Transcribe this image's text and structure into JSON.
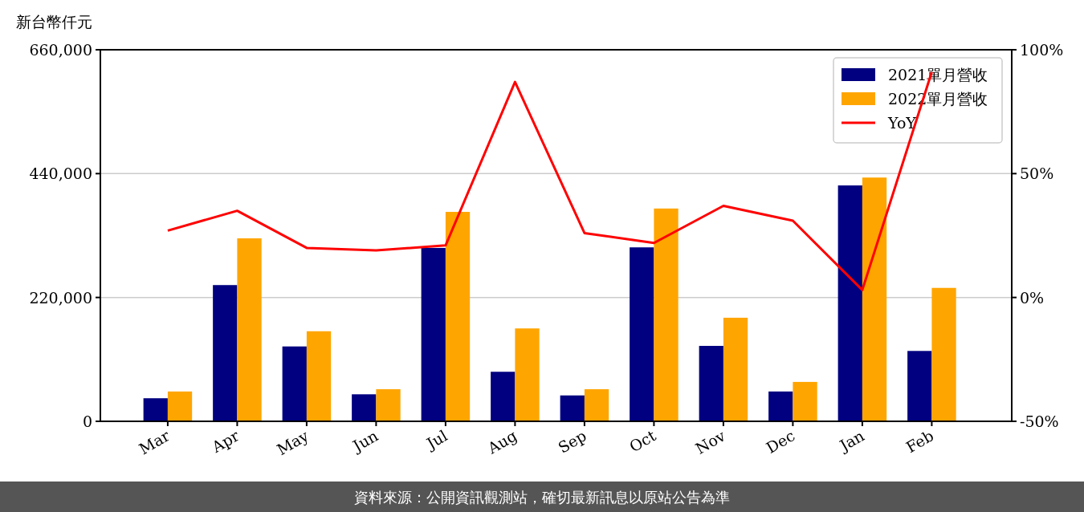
{
  "chart_data": {
    "type": "bar",
    "ylabel": "新台幣仟元",
    "categories": [
      "Mar",
      "Apr",
      "May",
      "Jun",
      "Jul",
      "Aug",
      "Sep",
      "Oct",
      "Nov",
      "Dec",
      "Jan",
      "Feb"
    ],
    "series": [
      {
        "name": "2021單月營收",
        "color": "#000080",
        "values": [
          41000,
          242000,
          133000,
          48000,
          308000,
          88000,
          46000,
          309000,
          134000,
          53000,
          419000,
          125000
        ]
      },
      {
        "name": "2022單月營收",
        "color": "#ffa500",
        "values": [
          53000,
          325000,
          160000,
          57000,
          372000,
          165000,
          57000,
          378000,
          184000,
          70000,
          433000,
          237000
        ]
      },
      {
        "name": "YoY",
        "type": "line",
        "axis": "y2",
        "color": "#ff0000",
        "values": [
          27,
          35,
          20,
          19,
          21,
          87,
          26,
          22,
          37,
          31,
          3,
          91
        ]
      }
    ],
    "ylim": [
      0,
      660000
    ],
    "yticks": [
      {
        "value": 0,
        "label": "0"
      },
      {
        "value": 220000,
        "label": "220,000"
      },
      {
        "value": 440000,
        "label": "440,000"
      },
      {
        "value": 660000,
        "label": "660,000"
      }
    ],
    "y2lim": [
      -50,
      100
    ],
    "y2ticks": [
      {
        "value": -50,
        "label": "-50%"
      },
      {
        "value": 0,
        "label": "0%"
      },
      {
        "value": 50,
        "label": "50%"
      },
      {
        "value": 100,
        "label": "100%"
      }
    ],
    "grid": "y",
    "legend": "top right",
    "annotations": [
      "資料來源：公開資訊觀測站，確切最新訊息以原站公告為準"
    ]
  }
}
